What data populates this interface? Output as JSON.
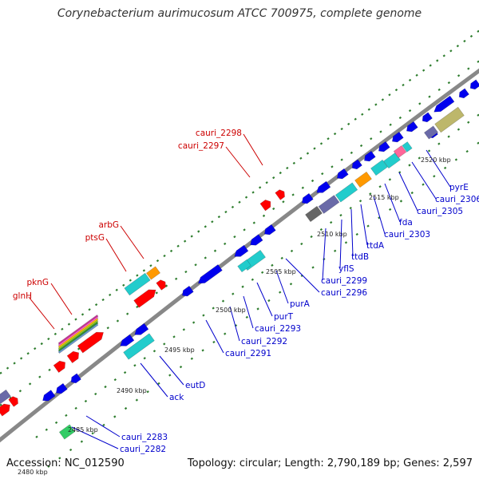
{
  "title": "Corynebacterium aurimucosum ATCC 700975, complete genome",
  "footer": {
    "accession": "Accession: NC_012590",
    "topology": "Topology: circular; Length: 2,790,189 bp; Genes: 2,597"
  },
  "colors": {
    "background": "#ffffff",
    "backbone": "#888888",
    "tick": "#2e7d2e",
    "forward_label": "#cc0000",
    "reverse_label": "#0000cc",
    "forward_cds": "#ff0000",
    "reverse_cds": "#0000ee",
    "cyan_feature": "#22cccc",
    "orange_feature": "#ff9900",
    "slate_feature": "#6a6aa8",
    "khaki_feature": "#bdb76b",
    "gray_feature": "#666666",
    "green_feature": "#33cc66",
    "pink_feature": "#ff6699"
  },
  "kbp_labels": [
    "2480 kbp",
    "2485 kbp",
    "2490 kbp",
    "2495 kbp",
    "2500 kbp",
    "2505 kbp",
    "2510 kbp",
    "2515 kbp",
    "2520 kbp"
  ],
  "forward_genes": [
    "glnH",
    "pknG",
    "ptsG",
    "arbG",
    "cauri_2297",
    "cauri_2298"
  ],
  "reverse_genes": [
    "cauri_2282",
    "cauri_2283",
    "ack",
    "eutD",
    "cauri_2291",
    "cauri_2292",
    "cauri_2293",
    "purT",
    "purA",
    "cauri_2296",
    "cauri_2299",
    "yflS",
    "ttdB",
    "ttdA",
    "cauri_2303",
    "fda",
    "cauri_2305",
    "cauri_2306",
    "pyrE"
  ]
}
